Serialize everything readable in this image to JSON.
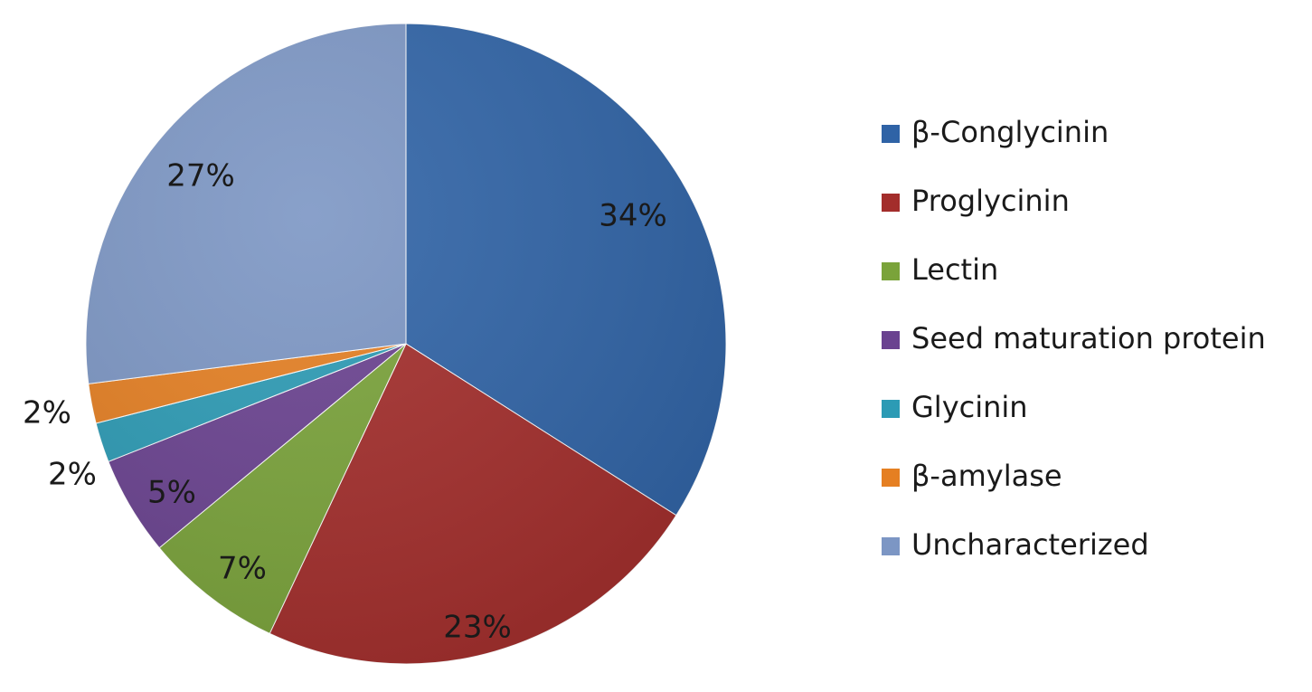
{
  "chart_data": {
    "type": "pie",
    "title": "",
    "legend_position": "right",
    "slices": [
      {
        "label": "β-Conglycinin",
        "value": 34,
        "display": "34%",
        "color": "#2f63a6"
      },
      {
        "label": "Proglycinin",
        "value": 23,
        "display": "23%",
        "color": "#a32d2b"
      },
      {
        "label": "Lectin",
        "value": 7,
        "display": "7%",
        "color": "#7aa33a"
      },
      {
        "label": "Seed maturation protein",
        "value": 5,
        "display": "5%",
        "color": "#6a4290"
      },
      {
        "label": "Glycinin",
        "value": 2,
        "display": "2%",
        "color": "#2c9bb5"
      },
      {
        "label": "β-amylase",
        "value": 2,
        "display": "2%",
        "color": "#e57f22"
      },
      {
        "label": "Uncharacterized",
        "value": 27,
        "display": "27%",
        "color": "#7c96c4"
      }
    ]
  }
}
